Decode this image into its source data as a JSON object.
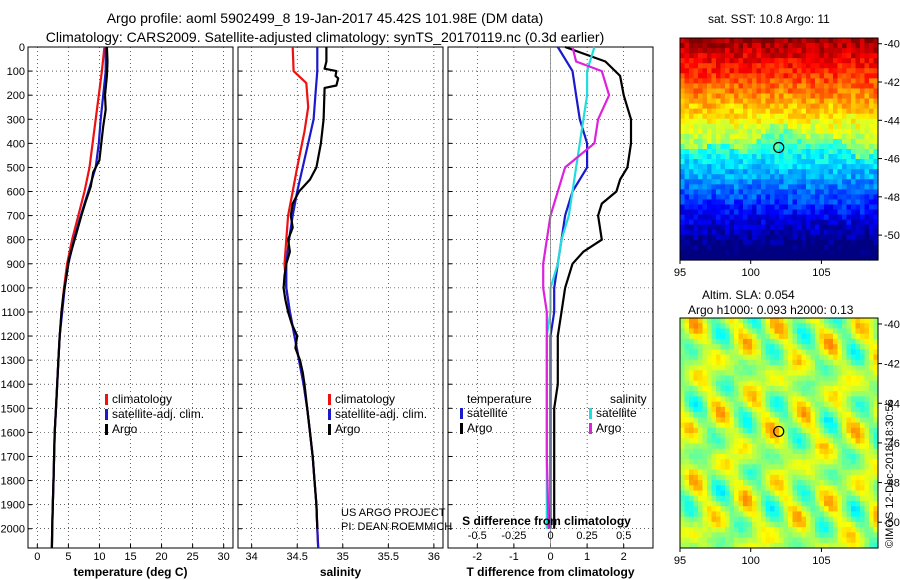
{
  "header": {
    "line1": "Argo profile: aoml 5902499_8 19-Jan-2017 45.42S 101.98E (DM data)",
    "line2": "Climatology: CARS2009. Satellite-adjusted climatology: synTS_20170119.nc (0.3d earlier)"
  },
  "credit": {
    "line1": "US ARGO PROJECT",
    "line2": "PI: DEAN ROEMMICH"
  },
  "watermark": "©IMOS 12-Dec-2018 18:30:56",
  "sst_title": "sat. SST: 10.8 Argo: 11",
  "sla_title1": "Altim. SLA: 0.054",
  "sla_title2": "Argo h1000: 0.093 h2000: 0.13",
  "colors": {
    "climatology": "#ee1111",
    "satellite": "#1a1acc",
    "argo": "#000000",
    "sal_satellite": "#22dddd",
    "sal_argo": "#dd22dd"
  },
  "chart_data": [
    {
      "type": "line",
      "id": "temperature",
      "xlabel": "temperature (deg C)",
      "ylabel": "depth",
      "xlim": [
        -1.5,
        31.5
      ],
      "ylim": [
        2080,
        0
      ],
      "xticks": [
        0,
        5,
        10,
        15,
        20,
        25,
        30
      ],
      "yticks": [
        0,
        100,
        200,
        300,
        400,
        500,
        600,
        700,
        800,
        900,
        1000,
        1100,
        1200,
        1300,
        1400,
        1500,
        1600,
        1700,
        1800,
        1900,
        2000
      ],
      "legend": [
        "climatology",
        "satellite-adj. clim.",
        "Argo"
      ],
      "series": [
        {
          "name": "climatology",
          "color": "#ee1111",
          "points": [
            [
              10.8,
              0
            ],
            [
              10.4,
              100
            ],
            [
              9.9,
              200
            ],
            [
              9.4,
              300
            ],
            [
              8.9,
              400
            ],
            [
              8.4,
              500
            ],
            [
              7.6,
              600
            ],
            [
              6.6,
              700
            ],
            [
              5.6,
              800
            ],
            [
              4.8,
              900
            ],
            [
              4.3,
              1000
            ],
            [
              3.9,
              1100
            ],
            [
              3.6,
              1200
            ],
            [
              3.4,
              1300
            ],
            [
              3.2,
              1400
            ],
            [
              3.0,
              1500
            ],
            [
              2.8,
              1600
            ],
            [
              2.7,
              1700
            ],
            [
              2.6,
              1800
            ],
            [
              2.5,
              1900
            ],
            [
              2.4,
              2000
            ],
            [
              2.35,
              2080
            ]
          ]
        },
        {
          "name": "satellite-adj. clim.",
          "color": "#1a1acc",
          "points": [
            [
              11.0,
              0
            ],
            [
              11.0,
              100
            ],
            [
              10.6,
              200
            ],
            [
              10.2,
              300
            ],
            [
              9.9,
              400
            ],
            [
              9.4,
              500
            ],
            [
              8.2,
              600
            ],
            [
              7.0,
              700
            ],
            [
              5.9,
              800
            ],
            [
              5.0,
              900
            ],
            [
              4.4,
              1000
            ],
            [
              4.0,
              1100
            ],
            [
              3.6,
              1200
            ],
            [
              3.4,
              1300
            ],
            [
              3.2,
              1400
            ],
            [
              3.0,
              1500
            ],
            [
              2.8,
              1600
            ],
            [
              2.7,
              1700
            ],
            [
              2.6,
              1800
            ],
            [
              2.5,
              1900
            ],
            [
              2.4,
              2000
            ],
            [
              2.35,
              2080
            ]
          ]
        },
        {
          "name": "Argo",
          "color": "#000000",
          "points": [
            [
              11.2,
              0
            ],
            [
              11.3,
              60
            ],
            [
              11.2,
              120
            ],
            [
              10.9,
              200
            ],
            [
              11.0,
              260
            ],
            [
              10.6,
              330
            ],
            [
              10.3,
              400
            ],
            [
              10.0,
              470
            ],
            [
              9.0,
              520
            ],
            [
              8.6,
              580
            ],
            [
              7.8,
              640
            ],
            [
              7.1,
              700
            ],
            [
              6.0,
              800
            ],
            [
              5.1,
              880
            ],
            [
              4.7,
              950
            ],
            [
              4.2,
              1030
            ],
            [
              3.9,
              1100
            ],
            [
              3.6,
              1200
            ],
            [
              3.4,
              1300
            ],
            [
              3.2,
              1400
            ],
            [
              3.0,
              1500
            ],
            [
              2.8,
              1600
            ],
            [
              2.7,
              1700
            ],
            [
              2.6,
              1800
            ],
            [
              2.5,
              1900
            ],
            [
              2.4,
              2000
            ],
            [
              2.35,
              2080
            ]
          ]
        }
      ]
    },
    {
      "type": "line",
      "id": "salinity",
      "xlabel": "salinity",
      "ylabel": "depth",
      "xlim": [
        33.85,
        36.1
      ],
      "ylim": [
        2080,
        0
      ],
      "xticks": [
        34,
        34.5,
        35,
        35.5,
        36
      ],
      "legend": [
        "climatology",
        "satellite-adj. clim.",
        "Argo"
      ],
      "series": [
        {
          "name": "climatology",
          "color": "#ee1111",
          "points": [
            [
              34.45,
              0
            ],
            [
              34.46,
              100
            ],
            [
              34.6,
              150
            ],
            [
              34.62,
              250
            ],
            [
              34.58,
              350
            ],
            [
              34.5,
              500
            ],
            [
              34.45,
              600
            ],
            [
              34.4,
              700
            ],
            [
              34.38,
              800
            ],
            [
              34.36,
              900
            ],
            [
              34.38,
              1000
            ],
            [
              34.42,
              1100
            ],
            [
              34.47,
              1200
            ],
            [
              34.52,
              1300
            ],
            [
              34.57,
              1400
            ],
            [
              34.61,
              1500
            ],
            [
              34.64,
              1600
            ],
            [
              34.67,
              1700
            ],
            [
              34.69,
              1800
            ],
            [
              34.71,
              1900
            ],
            [
              34.72,
              2000
            ],
            [
              34.73,
              2080
            ]
          ]
        },
        {
          "name": "satellite-adj. clim.",
          "color": "#1a1acc",
          "points": [
            [
              34.72,
              0
            ],
            [
              34.72,
              100
            ],
            [
              34.7,
              200
            ],
            [
              34.68,
              300
            ],
            [
              34.62,
              400
            ],
            [
              34.56,
              500
            ],
            [
              34.5,
              600
            ],
            [
              34.45,
              700
            ],
            [
              34.41,
              800
            ],
            [
              34.38,
              900
            ],
            [
              34.38,
              1000
            ],
            [
              34.42,
              1100
            ],
            [
              34.47,
              1200
            ],
            [
              34.52,
              1300
            ],
            [
              34.57,
              1400
            ],
            [
              34.61,
              1500
            ],
            [
              34.64,
              1600
            ],
            [
              34.67,
              1700
            ],
            [
              34.69,
              1800
            ],
            [
              34.71,
              1900
            ],
            [
              34.72,
              2000
            ],
            [
              34.73,
              2080
            ]
          ]
        },
        {
          "name": "Argo",
          "color": "#000000",
          "points": [
            [
              34.82,
              0
            ],
            [
              34.82,
              60
            ],
            [
              34.8,
              90
            ],
            [
              34.93,
              100
            ],
            [
              34.92,
              120
            ],
            [
              34.95,
              130
            ],
            [
              34.93,
              160
            ],
            [
              34.8,
              170
            ],
            [
              34.79,
              300
            ],
            [
              34.76,
              400
            ],
            [
              34.71,
              500
            ],
            [
              34.64,
              550
            ],
            [
              34.52,
              600
            ],
            [
              34.45,
              650
            ],
            [
              34.43,
              700
            ],
            [
              34.45,
              750
            ],
            [
              34.4,
              800
            ],
            [
              34.42,
              850
            ],
            [
              34.38,
              900
            ],
            [
              34.36,
              950
            ],
            [
              34.35,
              1000
            ],
            [
              34.37,
              1050
            ],
            [
              34.4,
              1100
            ],
            [
              34.44,
              1150
            ],
            [
              34.5,
              1200
            ],
            [
              34.48,
              1250
            ],
            [
              34.53,
              1300
            ],
            [
              34.56,
              1350
            ],
            [
              34.58,
              1400
            ],
            [
              34.61,
              1500
            ],
            [
              34.64,
              1600
            ],
            [
              34.67,
              1700
            ],
            [
              34.69,
              1800
            ],
            [
              34.71,
              1900
            ],
            [
              34.72,
              2000
            ]
          ]
        }
      ]
    },
    {
      "type": "line",
      "id": "difference",
      "xlabel": "T difference from climatology",
      "xlabel2": "S difference from climatology",
      "xlim": [
        -2.8,
        2.8
      ],
      "ylim": [
        2080,
        0
      ],
      "xticks": [
        -2,
        -1,
        0,
        1,
        2
      ],
      "xticks2": [
        {
          "v": -2,
          "t": "-0.5"
        },
        {
          "v": -1,
          "t": "-0.25"
        },
        {
          "v": 0,
          "t": "0"
        },
        {
          "v": 1,
          "t": "0.25"
        },
        {
          "v": 2,
          "t": "0.5"
        }
      ],
      "legend_left_title": "temperature",
      "legend_right_title": "salinity",
      "legend_left": [
        "satellite",
        "Argo"
      ],
      "legend_right": [
        "satellite",
        "Argo"
      ],
      "series": [
        {
          "name": "T satellite",
          "color": "#1a1acc",
          "points": [
            [
              0.2,
              0
            ],
            [
              0.6,
              100
            ],
            [
              0.7,
              200
            ],
            [
              0.8,
              300
            ],
            [
              1.0,
              400
            ],
            [
              1.0,
              500
            ],
            [
              0.6,
              600
            ],
            [
              0.4,
              700
            ],
            [
              0.3,
              800
            ],
            [
              0.2,
              900
            ],
            [
              0.1,
              1000
            ],
            [
              0.1,
              1100
            ],
            [
              0.0,
              1200
            ],
            [
              0.0,
              1300
            ],
            [
              0.0,
              1500
            ],
            [
              0.0,
              1800
            ],
            [
              0.0,
              2000
            ]
          ]
        },
        {
          "name": "T Argo",
          "color": "#000000",
          "points": [
            [
              0.4,
              0
            ],
            [
              1.5,
              60
            ],
            [
              1.9,
              120
            ],
            [
              2.0,
              200
            ],
            [
              2.2,
              300
            ],
            [
              2.2,
              400
            ],
            [
              2.1,
              500
            ],
            [
              1.9,
              550
            ],
            [
              1.8,
              600
            ],
            [
              1.4,
              650
            ],
            [
              1.3,
              700
            ],
            [
              1.4,
              800
            ],
            [
              0.9,
              850
            ],
            [
              0.6,
              900
            ],
            [
              0.4,
              1000
            ],
            [
              0.3,
              1100
            ],
            [
              0.2,
              1200
            ],
            [
              0.2,
              1300
            ],
            [
              0.2,
              1400
            ],
            [
              0.1,
              1500
            ],
            [
              0.1,
              1700
            ],
            [
              0.1,
              2000
            ]
          ]
        },
        {
          "name": "S satellite",
          "color": "#22dddd",
          "points": [
            [
              1.2,
              0
            ],
            [
              1.0,
              100
            ],
            [
              1.0,
              200
            ],
            [
              0.9,
              300
            ],
            [
              0.8,
              400
            ],
            [
              0.7,
              500
            ],
            [
              0.6,
              600
            ],
            [
              0.5,
              700
            ],
            [
              0.3,
              800
            ],
            [
              0.2,
              900
            ],
            [
              0.0,
              1000
            ],
            [
              0.0,
              1100
            ],
            [
              -0.1,
              1200
            ],
            [
              -0.1,
              1300
            ],
            [
              -0.1,
              1500
            ],
            [
              -0.1,
              1800
            ],
            [
              -0.1,
              2000
            ]
          ]
        },
        {
          "name": "S Argo",
          "color": "#dd22dd",
          "points": [
            [
              0.6,
              0
            ],
            [
              0.7,
              60
            ],
            [
              1.4,
              100
            ],
            [
              1.6,
              200
            ],
            [
              1.3,
              300
            ],
            [
              1.2,
              400
            ],
            [
              0.4,
              500
            ],
            [
              0.2,
              600
            ],
            [
              0.0,
              700
            ],
            [
              -0.1,
              800
            ],
            [
              -0.2,
              900
            ],
            [
              -0.2,
              1000
            ],
            [
              -0.1,
              1100
            ],
            [
              -0.1,
              1200
            ],
            [
              -0.1,
              1300
            ],
            [
              -0.1,
              1400
            ],
            [
              -0.1,
              1500
            ],
            [
              -0.1,
              1700
            ],
            [
              -0.05,
              2000
            ]
          ]
        }
      ]
    },
    {
      "type": "heatmap",
      "id": "sst-map",
      "xlim": [
        95,
        109
      ],
      "ylim": [
        -51.3,
        -39.7
      ],
      "xticks": [
        95,
        100,
        105
      ],
      "yticks": [
        -40,
        -42,
        -44,
        -46,
        -48,
        -50
      ],
      "marker": [
        101.98,
        -45.42
      ]
    },
    {
      "type": "heatmap",
      "id": "sla-map",
      "xlim": [
        95,
        109
      ],
      "ylim": [
        -51.3,
        -39.7
      ],
      "xticks": [
        95,
        100,
        105
      ],
      "yticks": [
        -40,
        -42,
        -44,
        -46,
        -48,
        -50
      ],
      "marker": [
        101.98,
        -45.42
      ]
    }
  ]
}
